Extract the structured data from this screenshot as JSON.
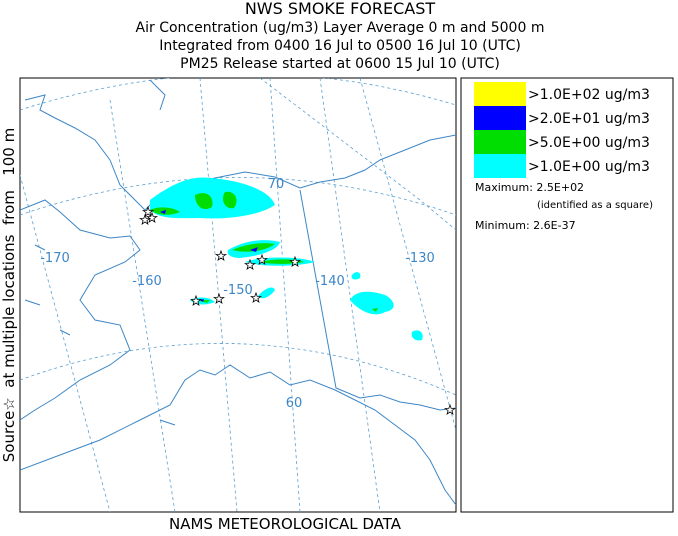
{
  "header": {
    "title": "NWS SMOKE FORECAST",
    "lines": [
      "Air Concentration (ug/m3) Layer Average    0 m and  5000 m",
      "Integrated from 0400 16 Jul to 0500 16 Jul 10 (UTC)",
      "PM25 Release started at 0600 15 Jul 10 (UTC)"
    ]
  },
  "side_label": "Source☆  at multiple locations  from   100 m",
  "footer": "NAMS METEOROLOGICAL DATA",
  "map": {
    "labels": [
      "-170",
      "-160",
      "-150",
      "-140",
      "-130",
      "70",
      "60"
    ]
  },
  "legend": {
    "items": [
      {
        "label": ">1.0E+02 ug/m3",
        "color": "#ffff00"
      },
      {
        "label": ">2.0E+01 ug/m3",
        "color": "#0000ff"
      },
      {
        "label": ">5.0E+00 ug/m3",
        "color": "#00dd00"
      },
      {
        "label": ">1.0E+00 ug/m3",
        "color": "#00ffff"
      }
    ],
    "maximum": "Maximum: 2.5E+02",
    "maximum_note": "(identified as a square)",
    "minimum": "Minimum: 2.6E-37"
  }
}
